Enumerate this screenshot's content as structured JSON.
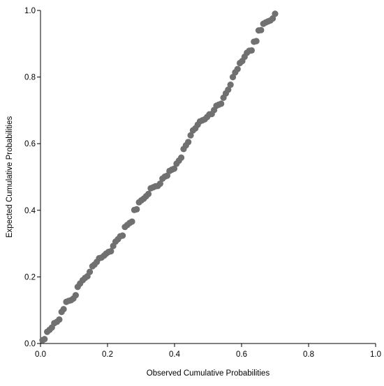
{
  "chart_data": {
    "type": "scatter",
    "title": "",
    "xlabel": "Observed Cumulative Probabilities",
    "ylabel": "Expected Cumulative Probabilities",
    "xlim": [
      0,
      1
    ],
    "ylim": [
      0,
      1
    ],
    "xticks": [
      0.0,
      0.2,
      0.4,
      0.6,
      0.8,
      1.0
    ],
    "yticks": [
      0.0,
      0.2,
      0.4,
      0.6,
      0.8,
      1.0
    ],
    "xtick_labels": [
      "0.0",
      "0.2",
      "0.4",
      "0.6",
      "0.8",
      "1.0"
    ],
    "ytick_labels": [
      "0.0",
      "0.2",
      "0.4",
      "0.6",
      "0.8",
      "1.0"
    ],
    "grid": false,
    "legend": "none",
    "marker_color": "#707070",
    "axis_color": "#000000",
    "series": [
      {
        "points": [
          [
            0.006,
            0.01
          ],
          [
            0.012,
            0.013
          ],
          [
            0.02,
            0.035
          ],
          [
            0.027,
            0.041
          ],
          [
            0.034,
            0.048
          ],
          [
            0.041,
            0.061
          ],
          [
            0.049,
            0.065
          ],
          [
            0.056,
            0.072
          ],
          [
            0.063,
            0.095
          ],
          [
            0.069,
            0.103
          ],
          [
            0.077,
            0.125
          ],
          [
            0.084,
            0.128
          ],
          [
            0.091,
            0.13
          ],
          [
            0.098,
            0.135
          ],
          [
            0.105,
            0.145
          ],
          [
            0.111,
            0.17
          ],
          [
            0.118,
            0.18
          ],
          [
            0.126,
            0.19
          ],
          [
            0.133,
            0.197
          ],
          [
            0.14,
            0.202
          ],
          [
            0.147,
            0.215
          ],
          [
            0.155,
            0.232
          ],
          [
            0.161,
            0.237
          ],
          [
            0.168,
            0.245
          ],
          [
            0.175,
            0.256
          ],
          [
            0.182,
            0.258
          ],
          [
            0.19,
            0.264
          ],
          [
            0.196,
            0.27
          ],
          [
            0.203,
            0.275
          ],
          [
            0.21,
            0.277
          ],
          [
            0.217,
            0.293
          ],
          [
            0.224,
            0.306
          ],
          [
            0.231,
            0.313
          ],
          [
            0.238,
            0.322
          ],
          [
            0.245,
            0.324
          ],
          [
            0.252,
            0.35
          ],
          [
            0.259,
            0.356
          ],
          [
            0.266,
            0.362
          ],
          [
            0.273,
            0.366
          ],
          [
            0.28,
            0.401
          ],
          [
            0.287,
            0.403
          ],
          [
            0.294,
            0.424
          ],
          [
            0.301,
            0.43
          ],
          [
            0.308,
            0.435
          ],
          [
            0.315,
            0.442
          ],
          [
            0.322,
            0.449
          ],
          [
            0.329,
            0.466
          ],
          [
            0.336,
            0.469
          ],
          [
            0.343,
            0.472
          ],
          [
            0.35,
            0.473
          ],
          [
            0.357,
            0.48
          ],
          [
            0.364,
            0.495
          ],
          [
            0.371,
            0.501
          ],
          [
            0.378,
            0.504
          ],
          [
            0.385,
            0.518
          ],
          [
            0.392,
            0.522
          ],
          [
            0.399,
            0.525
          ],
          [
            0.406,
            0.54
          ],
          [
            0.413,
            0.549
          ],
          [
            0.42,
            0.558
          ],
          [
            0.427,
            0.584
          ],
          [
            0.434,
            0.595
          ],
          [
            0.441,
            0.605
          ],
          [
            0.448,
            0.625
          ],
          [
            0.455,
            0.64
          ],
          [
            0.462,
            0.646
          ],
          [
            0.469,
            0.657
          ],
          [
            0.476,
            0.667
          ],
          [
            0.483,
            0.67
          ],
          [
            0.49,
            0.673
          ],
          [
            0.497,
            0.68
          ],
          [
            0.504,
            0.688
          ],
          [
            0.511,
            0.689
          ],
          [
            0.518,
            0.701
          ],
          [
            0.525,
            0.714
          ],
          [
            0.532,
            0.717
          ],
          [
            0.539,
            0.72
          ],
          [
            0.546,
            0.738
          ],
          [
            0.553,
            0.751
          ],
          [
            0.56,
            0.762
          ],
          [
            0.567,
            0.777
          ],
          [
            0.574,
            0.8
          ],
          [
            0.581,
            0.814
          ],
          [
            0.588,
            0.824
          ],
          [
            0.595,
            0.842
          ],
          [
            0.602,
            0.848
          ],
          [
            0.609,
            0.861
          ],
          [
            0.616,
            0.873
          ],
          [
            0.623,
            0.879
          ],
          [
            0.63,
            0.88
          ],
          [
            0.637,
            0.906
          ],
          [
            0.644,
            0.908
          ],
          [
            0.651,
            0.94
          ],
          [
            0.658,
            0.941
          ],
          [
            0.665,
            0.96
          ],
          [
            0.672,
            0.964
          ],
          [
            0.679,
            0.967
          ],
          [
            0.686,
            0.97
          ],
          [
            0.693,
            0.976
          ],
          [
            0.7,
            0.99
          ]
        ]
      }
    ]
  }
}
